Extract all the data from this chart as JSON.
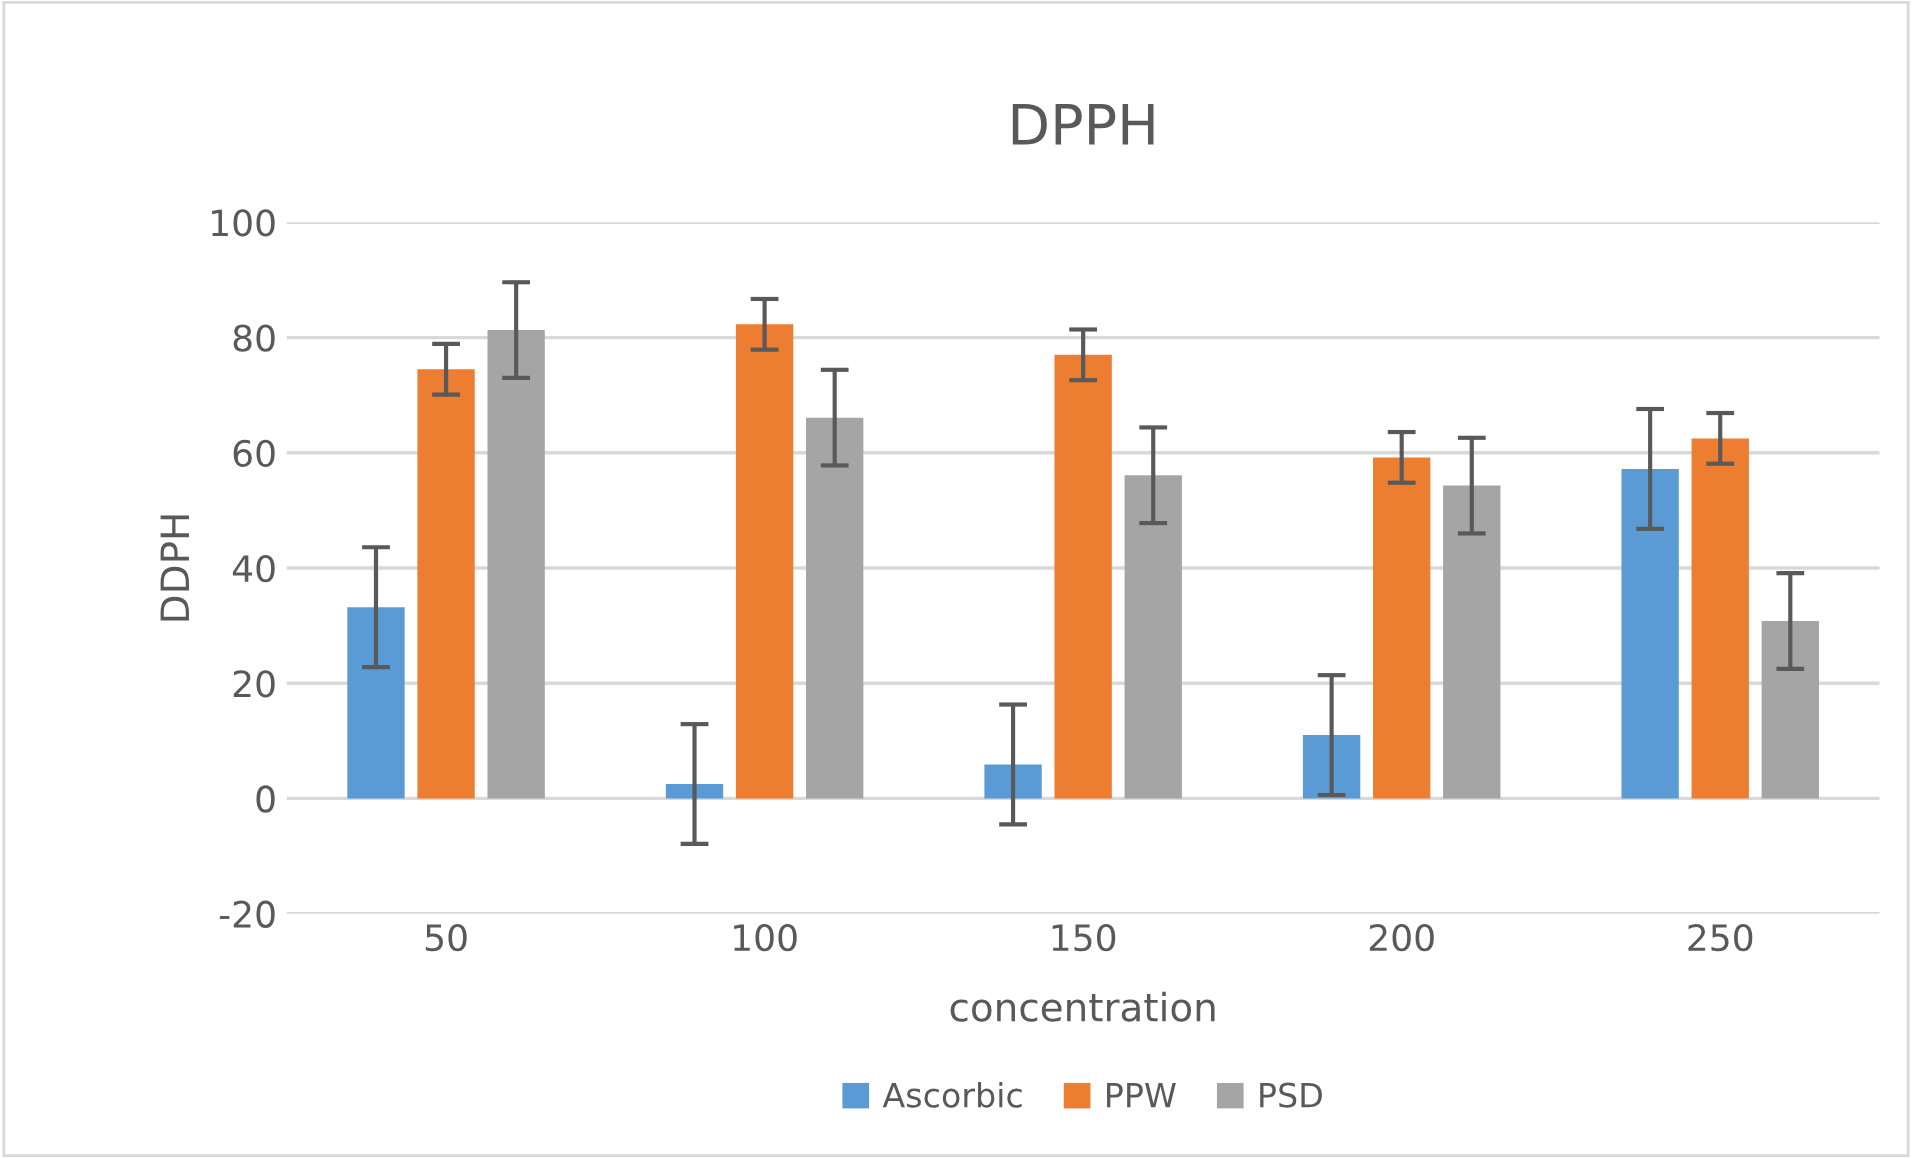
{
  "chart_data": {
    "type": "bar",
    "title": "DPPH",
    "xlabel": "concentration",
    "ylabel": "DDPH",
    "categories": [
      "50",
      "100",
      "150",
      "200",
      "250"
    ],
    "series": [
      {
        "name": "Ascorbic",
        "color": "#5b9bd5",
        "values": [
          33.2,
          2.5,
          5.9,
          11.0,
          57.2
        ],
        "errors": [
          10.4,
          10.4,
          10.4,
          10.4,
          10.4
        ]
      },
      {
        "name": "PPW",
        "color": "#ed7d31",
        "values": [
          74.5,
          82.3,
          77.0,
          59.2,
          62.5
        ],
        "errors": [
          4.4,
          4.4,
          4.4,
          4.4,
          4.4
        ]
      },
      {
        "name": "PSD",
        "color": "#a5a5a5",
        "values": [
          81.3,
          66.1,
          56.1,
          54.3,
          30.8
        ],
        "errors": [
          8.3,
          8.3,
          8.3,
          8.3,
          8.3
        ]
      }
    ],
    "ylim": [
      -20,
      100
    ],
    "yticks": [
      -20,
      0,
      20,
      40,
      60,
      80,
      100
    ],
    "grid": "y",
    "legend": "bottom"
  }
}
